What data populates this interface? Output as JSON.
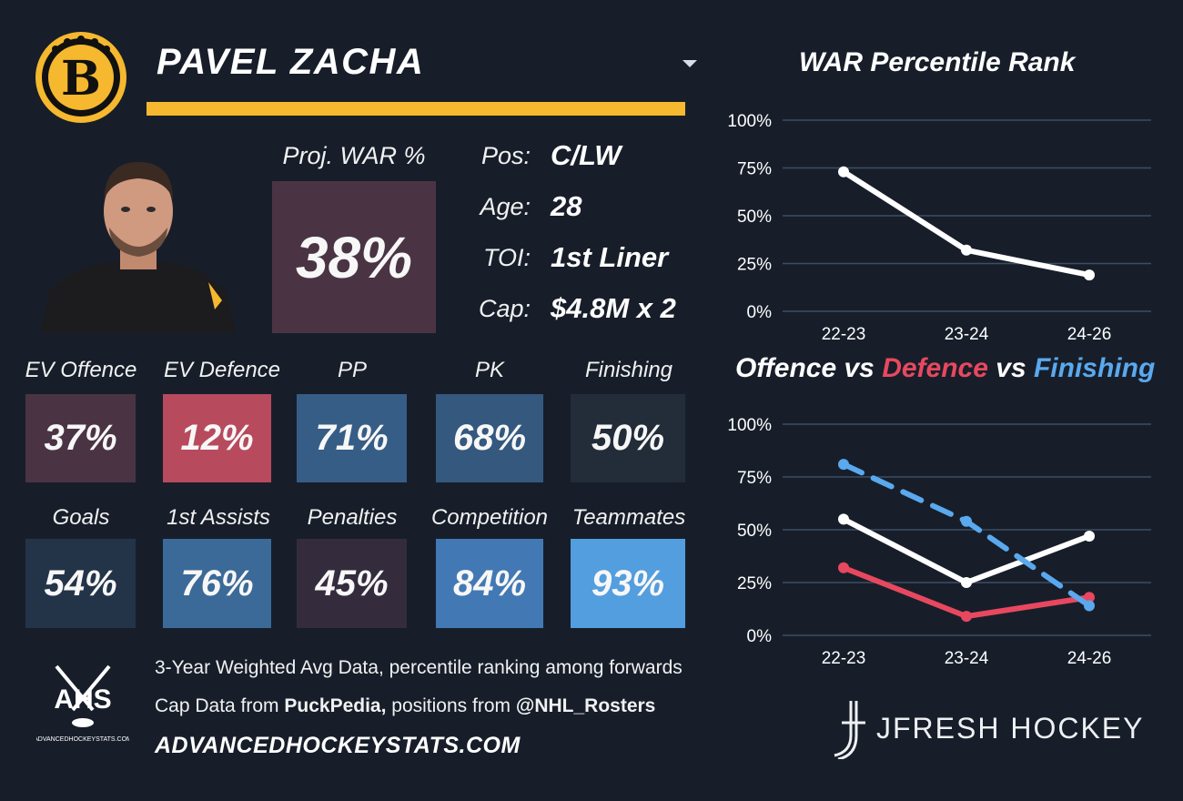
{
  "header": {
    "player_name": "PAVEL ZACHA",
    "team_logo": "bruins-b-logo-icon",
    "dropdown_icon": "chevron-down-icon"
  },
  "projection": {
    "label": "Proj. WAR %",
    "value": "38%",
    "color": "#4a3444"
  },
  "info": {
    "pos_label": "Pos:",
    "pos_value": "C/LW",
    "age_label": "Age:",
    "age_value": "28",
    "toi_label": "TOI:",
    "toi_value": "1st Liner",
    "cap_label": "Cap:",
    "cap_value": "$4.8M x 2"
  },
  "stats": [
    {
      "label": "EV Offence",
      "value": "37%",
      "pct": 37,
      "color": "#4a3444"
    },
    {
      "label": "EV Defence",
      "value": "12%",
      "pct": 12,
      "color": "#b84a5e"
    },
    {
      "label": "PP",
      "value": "71%",
      "pct": 71,
      "color": "#365d85"
    },
    {
      "label": "PK",
      "value": "68%",
      "pct": 68,
      "color": "#34587e"
    },
    {
      "label": "Finishing",
      "value": "50%",
      "pct": 50,
      "color": "#232d3a"
    },
    {
      "label": "Goals",
      "value": "54%",
      "pct": 54,
      "color": "#233449"
    },
    {
      "label": "1st Assists",
      "value": "76%",
      "pct": 76,
      "color": "#3b6a98"
    },
    {
      "label": "Penalties",
      "value": "45%",
      "pct": 45,
      "color": "#342c3d"
    },
    {
      "label": "Competition",
      "value": "84%",
      "pct": 84,
      "color": "#4279b4"
    },
    {
      "label": "Teammates",
      "value": "93%",
      "pct": 93,
      "color": "#539ede"
    }
  ],
  "footer": {
    "line1": "3-Year Weighted Avg Data, percentile ranking among forwards",
    "line2_prefix": "Cap Data from ",
    "line2_source1": "PuckPedia,",
    "line2_mid": " positions from ",
    "line2_source2": "@NHL_Rosters",
    "line3": "ADVANCEDHOCKEYSTATS.COM",
    "ahs_logo_text": "AHS",
    "ahs_logo_sub": "ADVANCEDHOCKEYSTATS.COM",
    "brand": "JFRESH HOCKEY"
  },
  "colors": {
    "background": "#171e2a",
    "gold": "#f5b82e",
    "offence_line": "#ffffff",
    "defence_line": "#e8485f",
    "finishing_line": "#5aa9ee"
  },
  "chart_data": [
    {
      "type": "line",
      "title": "WAR Percentile Rank",
      "categories": [
        "22-23",
        "23-24",
        "24-26"
      ],
      "series": [
        {
          "values": [
            73,
            32,
            19
          ],
          "color": "#ffffff"
        }
      ],
      "yticks": [
        "100%",
        "75%",
        "50%",
        "25%",
        "0%"
      ],
      "ylim": [
        0,
        100
      ],
      "grid": true
    },
    {
      "type": "line",
      "title_parts": [
        "Offence",
        " vs ",
        "Defence",
        " vs ",
        "Finishing"
      ],
      "categories": [
        "22-23",
        "23-24",
        "24-26"
      ],
      "series": [
        {
          "name": "Offence",
          "values": [
            55,
            25,
            47
          ],
          "color": "#ffffff",
          "dashed": false
        },
        {
          "name": "Defence",
          "values": [
            32,
            9,
            18
          ],
          "color": "#e8485f",
          "dashed": false
        },
        {
          "name": "Finishing",
          "values": [
            81,
            54,
            14
          ],
          "color": "#5aa9ee",
          "dashed": true
        }
      ],
      "yticks": [
        "100%",
        "75%",
        "50%",
        "25%",
        "0%"
      ],
      "ylim": [
        0,
        100
      ],
      "grid": true
    }
  ]
}
